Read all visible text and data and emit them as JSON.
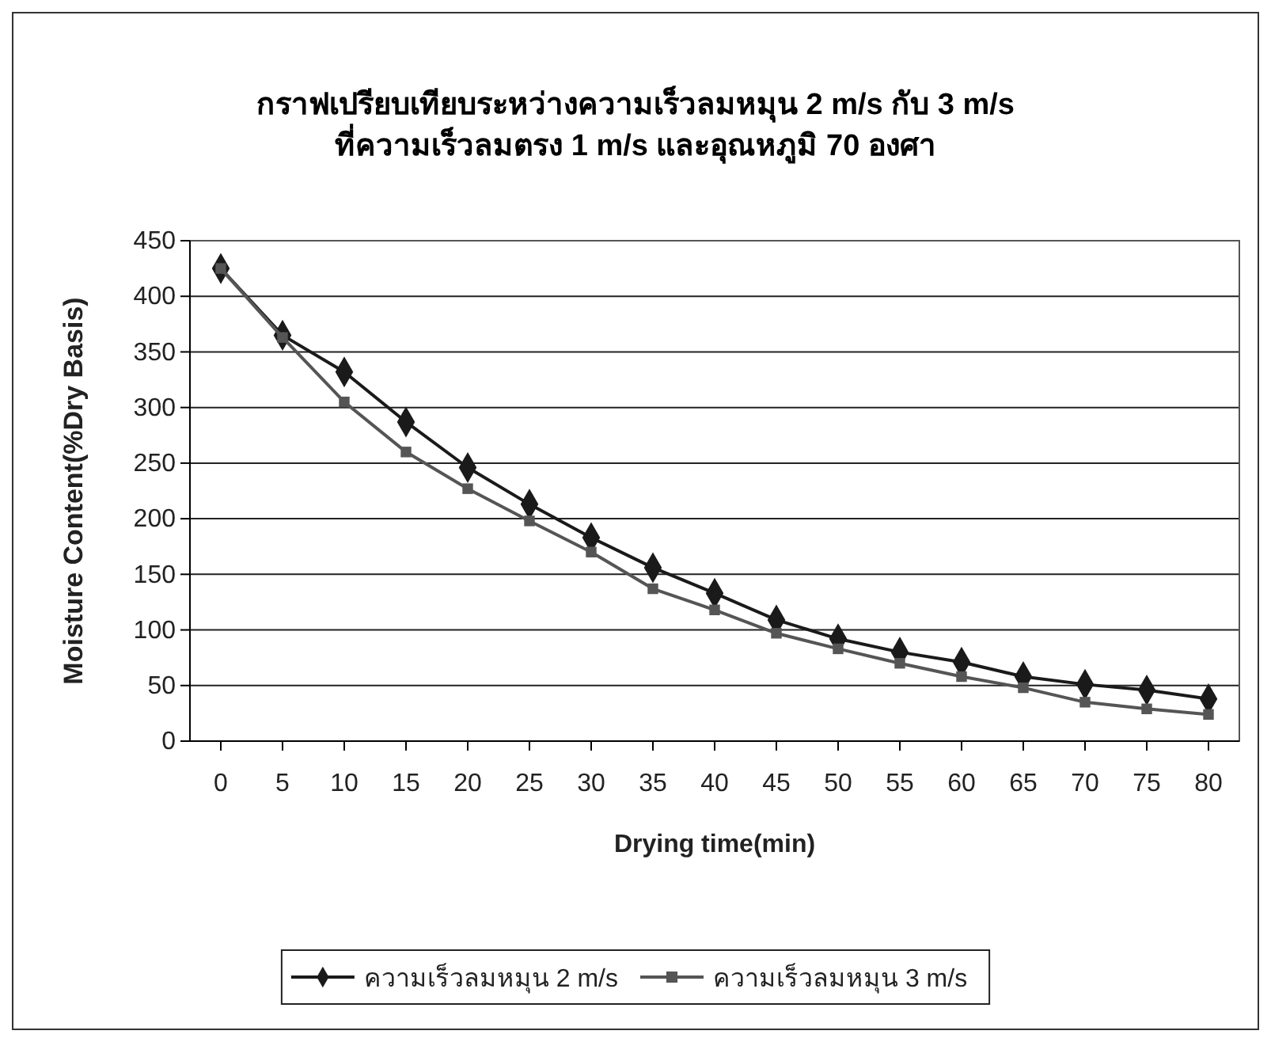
{
  "chart_data": {
    "type": "line",
    "title": "กราฟเปรียบเทียบระหว่างความเร็วลมหมุน 2 m/s กับ 3 m/s ที่ความเร็วลมตรง 1 m/s และอุณหภูมิ 70 องศา",
    "xlabel": "Drying time(min)",
    "ylabel": "Moisture Content(%Dry Basis)",
    "categories": [
      "0",
      "5",
      "10",
      "15",
      "20",
      "25",
      "30",
      "35",
      "40",
      "45",
      "50",
      "55",
      "60",
      "65",
      "70",
      "75",
      "80"
    ],
    "series": [
      {
        "name": "ความเร็วลมหมุน 2 m/s",
        "color": "#1a1a1a",
        "marker": "diamond",
        "values": [
          425,
          365,
          332,
          287,
          246,
          213,
          183,
          156,
          133,
          109,
          92,
          80,
          71,
          58,
          51,
          46,
          38
        ]
      },
      {
        "name": "ความเร็วลมหมุน 3 m/s",
        "color": "#555555",
        "marker": "square",
        "values": [
          425,
          363,
          305,
          260,
          227,
          198,
          170,
          137,
          118,
          97,
          83,
          70,
          58,
          48,
          35,
          29,
          24
        ]
      }
    ],
    "ylim": [
      0,
      450
    ],
    "yticks": [
      0,
      50,
      100,
      150,
      200,
      250,
      300,
      350,
      400,
      450
    ],
    "grid": "y",
    "legend": "bottom"
  }
}
